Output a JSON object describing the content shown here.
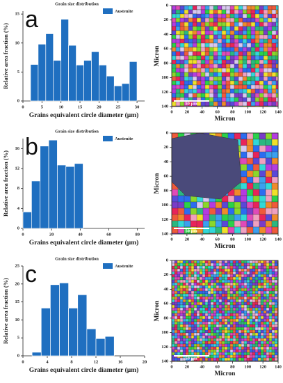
{
  "chart_data": [
    {
      "type": "histogram",
      "panel": "a",
      "title": "Grain size distribution",
      "legend": "Austenite",
      "xlabel": "Grains equivalent circle diameter (µm)",
      "ylabel": "Relative area fraction (%)",
      "color": "#1f6fc0",
      "bins": [
        2,
        4,
        6,
        8,
        10,
        12,
        14,
        16,
        18,
        20,
        22,
        24,
        26,
        28,
        30
      ],
      "values": [
        6.3,
        9.8,
        11.6,
        7.0,
        14.1,
        9.6,
        6.2,
        7.0,
        8.5,
        6.2,
        4.3,
        2.6,
        3.0,
        6.8
      ],
      "xlim": [
        0,
        32
      ],
      "xticks": [
        0,
        5,
        10,
        15,
        20,
        25,
        30
      ],
      "ylim": [
        0,
        15.5
      ],
      "yticks": [
        0,
        5,
        10,
        15
      ]
    },
    {
      "type": "histogram",
      "panel": "b",
      "title": "Grain size distribution",
      "legend": "Austenite",
      "xlabel": "Grains equivalent circle diameter (µm)",
      "ylabel": "Relative area fraction (%)",
      "color": "#1f6fc0",
      "bins": [
        0,
        6,
        12,
        18,
        24,
        30,
        36,
        42
      ],
      "values": [
        3.3,
        9.5,
        16.5,
        17.7,
        12.7,
        12.4,
        13.0
      ],
      "xlim": [
        0,
        85
      ],
      "xticks": [
        0,
        20,
        40,
        60,
        80
      ],
      "ylim": [
        0,
        18
      ],
      "yticks": [
        0,
        4,
        8,
        12,
        16
      ]
    },
    {
      "type": "histogram",
      "panel": "c",
      "title": "Grain size distribution",
      "legend": "Austenite",
      "xlabel": "Grains equivalent circle diameter (µm)",
      "ylabel": "Relative area fraction (%)",
      "color": "#1f6fc0",
      "bins": [
        1.5,
        3,
        4.5,
        6,
        7.5,
        9,
        10.5,
        12,
        13.5,
        15
      ],
      "values": [
        1.0,
        13.3,
        19.8,
        20.3,
        13.3,
        17.0,
        7.5,
        4.8,
        5.4
      ],
      "xlim": [
        0,
        20
      ],
      "xticks": [
        0,
        4,
        8,
        12,
        16,
        20
      ],
      "ylim": [
        0,
        25
      ],
      "yticks": [
        0,
        5,
        10,
        15,
        20,
        25
      ]
    }
  ],
  "maps": [
    {
      "xlabel": "Micron",
      "ylabel": "Micron",
      "scale_bar": "50 µm",
      "xlim": [
        0,
        140
      ],
      "ylim": [
        0,
        140
      ],
      "xticks": [
        0,
        20,
        40,
        60,
        80,
        100,
        120,
        140
      ],
      "yticks": [
        0,
        20,
        40,
        60,
        80,
        100,
        120,
        140
      ]
    },
    {
      "xlabel": "Micron",
      "ylabel": "Micron",
      "scale_bar": "50 µm",
      "xlim": [
        0,
        140
      ],
      "ylim": [
        0,
        140
      ],
      "xticks": [
        0,
        20,
        40,
        60,
        80,
        100,
        120,
        140
      ],
      "yticks": [
        0,
        20,
        40,
        60,
        80,
        100,
        120,
        140
      ]
    },
    {
      "xlabel": "Micron",
      "ylabel": "Micron",
      "scale_bar": "50 µm",
      "xlim": [
        0,
        140
      ],
      "ylim": [
        0,
        140
      ],
      "xticks": [
        0,
        20,
        40,
        60,
        80,
        100,
        120,
        140
      ],
      "yticks": [
        0,
        20,
        40,
        60,
        80,
        100,
        120,
        140
      ]
    }
  ]
}
